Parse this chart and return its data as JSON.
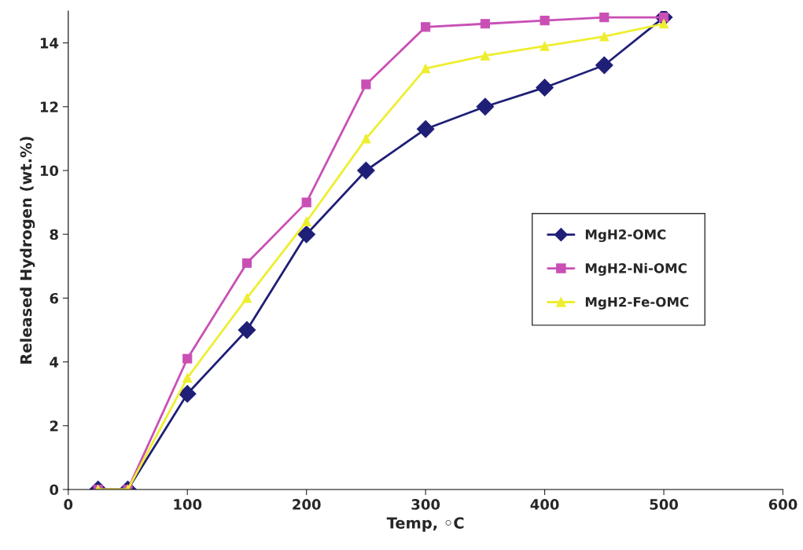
{
  "chart_data": {
    "type": "line",
    "xlabel": "Temp, ◦C",
    "ylabel": "Released Hydrogen (wt.%)",
    "x": [
      25,
      50,
      100,
      150,
      200,
      250,
      300,
      350,
      400,
      450,
      500
    ],
    "series": [
      {
        "name": "MgH2-OMC",
        "color": "#1f1f78",
        "marker": "diamond",
        "values": [
          0,
          0,
          3,
          5,
          8,
          10,
          11.3,
          12,
          12.6,
          13.3,
          14.8
        ]
      },
      {
        "name": "MgH2-Ni-OMC",
        "color": "#c94fb5",
        "marker": "square",
        "values": [
          0,
          0,
          4.1,
          7.1,
          9,
          12.7,
          14.5,
          14.6,
          14.7,
          14.8,
          14.8
        ]
      },
      {
        "name": "MgH2-Fe-OMC",
        "color": "#eeee30",
        "marker": "triangle",
        "values": [
          0,
          0,
          3.5,
          6,
          8.4,
          11,
          13.2,
          13.6,
          13.9,
          14.2,
          14.6
        ]
      }
    ],
    "xlim": [
      0,
      600
    ],
    "xticks": [
      0,
      100,
      200,
      300,
      400,
      500,
      600
    ],
    "ylim": [
      0,
      15
    ],
    "yticks": [
      0,
      2,
      4,
      6,
      8,
      10,
      12,
      14
    ],
    "grid": false,
    "legend": "right",
    "line_style": "solid"
  }
}
